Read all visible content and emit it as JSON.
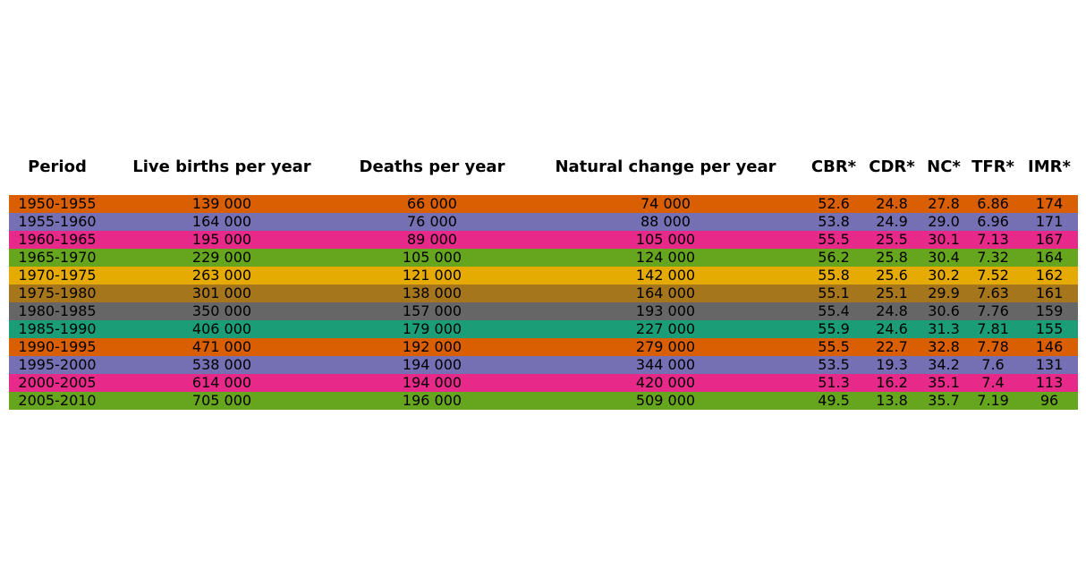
{
  "chart_data": {
    "type": "table",
    "columns": [
      "Period",
      "Live births per year",
      "Deaths per year",
      "Natural change per year",
      "CBR*",
      "CDR*",
      "NC*",
      "TFR*",
      "IMR*"
    ],
    "rows": [
      [
        "1950-1955",
        "139 000",
        "66 000",
        "74 000",
        "52.6",
        "24.8",
        "27.8",
        "6.86",
        "174"
      ],
      [
        "1955-1960",
        "164 000",
        "76 000",
        "88 000",
        "53.8",
        "24.9",
        "29.0",
        "6.96",
        "171"
      ],
      [
        "1960-1965",
        "195 000",
        "89 000",
        "105 000",
        "55.5",
        "25.5",
        "30.1",
        "7.13",
        "167"
      ],
      [
        "1965-1970",
        "229 000",
        "105 000",
        "124 000",
        "56.2",
        "25.8",
        "30.4",
        "7.32",
        "164"
      ],
      [
        "1970-1975",
        "263 000",
        "121 000",
        "142 000",
        "55.8",
        "25.6",
        "30.2",
        "7.52",
        "162"
      ],
      [
        "1975-1980",
        "301 000",
        "138 000",
        "164 000",
        "55.1",
        "25.1",
        "29.9",
        "7.63",
        "161"
      ],
      [
        "1980-1985",
        "350 000",
        "157 000",
        "193 000",
        "55.4",
        "24.8",
        "30.6",
        "7.76",
        "159"
      ],
      [
        "1985-1990",
        "406 000",
        "179 000",
        "227 000",
        "55.9",
        "24.6",
        "31.3",
        "7.81",
        "155"
      ],
      [
        "1990-1995",
        "471 000",
        "192 000",
        "279 000",
        "55.5",
        "22.7",
        "32.8",
        "7.78",
        "146"
      ],
      [
        "1995-2000",
        "538 000",
        "194 000",
        "344 000",
        "53.5",
        "19.3",
        "34.2",
        "7.6",
        "131"
      ],
      [
        "2000-2005",
        "614 000",
        "194 000",
        "420 000",
        "51.3",
        "16.2",
        "35.1",
        "7.4",
        "113"
      ],
      [
        "2005-2010",
        "705 000",
        "196 000",
        "509 000",
        "49.5",
        "13.8",
        "35.7",
        "7.19",
        "96"
      ]
    ],
    "row_colors": [
      "#d95f02",
      "#7570b3",
      "#e7298a",
      "#66a61e",
      "#e6ab02",
      "#a6761d",
      "#666666",
      "#1b9e77",
      "#d95f02",
      "#7570b3",
      "#e7298a",
      "#66a61e"
    ]
  }
}
